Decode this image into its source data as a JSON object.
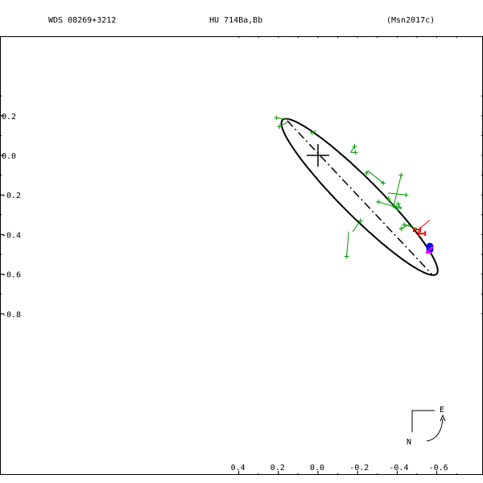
{
  "header": {
    "left": "WDS 08269+3212",
    "center": "HU  714Ba,Bb",
    "right": "(Msn2017c)"
  },
  "compass": {
    "east": "E",
    "north": "N"
  },
  "chart_data": {
    "type": "scatter",
    "x_ticks": [
      "-0.6",
      "-0.4",
      "-0.2",
      "0.0",
      "0.2",
      "0.4"
    ],
    "y_ticks": [
      "0.2",
      "0.0",
      "-0.2",
      "-0.4",
      "-0.6",
      "-0.8"
    ],
    "xlim": [
      0.4,
      -0.8
    ],
    "ylim": [
      0.2,
      -0.8
    ],
    "primary": [
      0.0,
      0.0
    ],
    "orbit": {
      "center": [
        -0.21,
        -0.21
      ],
      "semi_major": 0.55,
      "semi_minor": 0.095,
      "angle_deg": 45
    },
    "line_of_nodes": [
      [
        0.155,
        0.175
      ],
      [
        -0.575,
        -0.6
      ]
    ],
    "observations": [
      {
        "obs": [
          0.21,
          0.19
        ],
        "calc": [
          0.145,
          0.18
        ]
      },
      {
        "obs": [
          0.195,
          0.145
        ],
        "calc": [
          0.15,
          0.17
        ]
      },
      {
        "obs": [
          0.03,
          0.115
        ],
        "calc": [
          0.01,
          0.125
        ]
      },
      {
        "obs": [
          -0.185,
          0.045
        ],
        "calc": [
          -0.165,
          0.015
        ]
      },
      {
        "obs": [
          -0.19,
          0.015
        ],
        "calc": [
          -0.165,
          0.015
        ]
      },
      {
        "obs": [
          -0.245,
          -0.09
        ],
        "calc": [
          -0.255,
          -0.075
        ]
      },
      {
        "obs": [
          -0.33,
          -0.14
        ],
        "calc": [
          -0.255,
          -0.08
        ]
      },
      {
        "obs": [
          -0.42,
          -0.1
        ],
        "calc": [
          -0.38,
          -0.265
        ]
      },
      {
        "obs": [
          -0.445,
          -0.2
        ],
        "calc": [
          -0.355,
          -0.19
        ]
      },
      {
        "obs": [
          -0.355,
          -0.22
        ],
        "calc": [
          -0.405,
          -0.28
        ]
      },
      {
        "obs": [
          -0.305,
          -0.235
        ],
        "calc": [
          -0.42,
          -0.27
        ]
      },
      {
        "obs": [
          -0.385,
          -0.255
        ],
        "calc": [
          -0.425,
          -0.265
        ]
      },
      {
        "obs": [
          -0.405,
          -0.245
        ],
        "calc": [
          -0.42,
          -0.27
        ]
      },
      {
        "obs": [
          -0.435,
          -0.35
        ],
        "calc": [
          -0.5,
          -0.37
        ]
      },
      {
        "obs": [
          -0.42,
          -0.37
        ],
        "calc": [
          -0.46,
          -0.35
        ]
      },
      {
        "obs": [
          -0.215,
          -0.33
        ],
        "calc": [
          -0.175,
          -0.385
        ]
      },
      {
        "obs": [
          -0.145,
          -0.51
        ],
        "calc": [
          -0.155,
          -0.385
        ]
      }
    ],
    "red_marks": [
      [
        -0.525,
        -0.395
      ],
      [
        -0.5,
        -0.375
      ]
    ],
    "blue_marks": [
      [
        -0.565,
        -0.46
      ],
      [
        -0.565,
        -0.475
      ]
    ],
    "magenta_mark": [
      -0.565,
      -0.48
    ],
    "colors": {
      "orbit": "#000000",
      "observation": "#009900",
      "red": "#ff0000",
      "blue": "#0000ff",
      "magenta": "#ff00ff"
    }
  }
}
